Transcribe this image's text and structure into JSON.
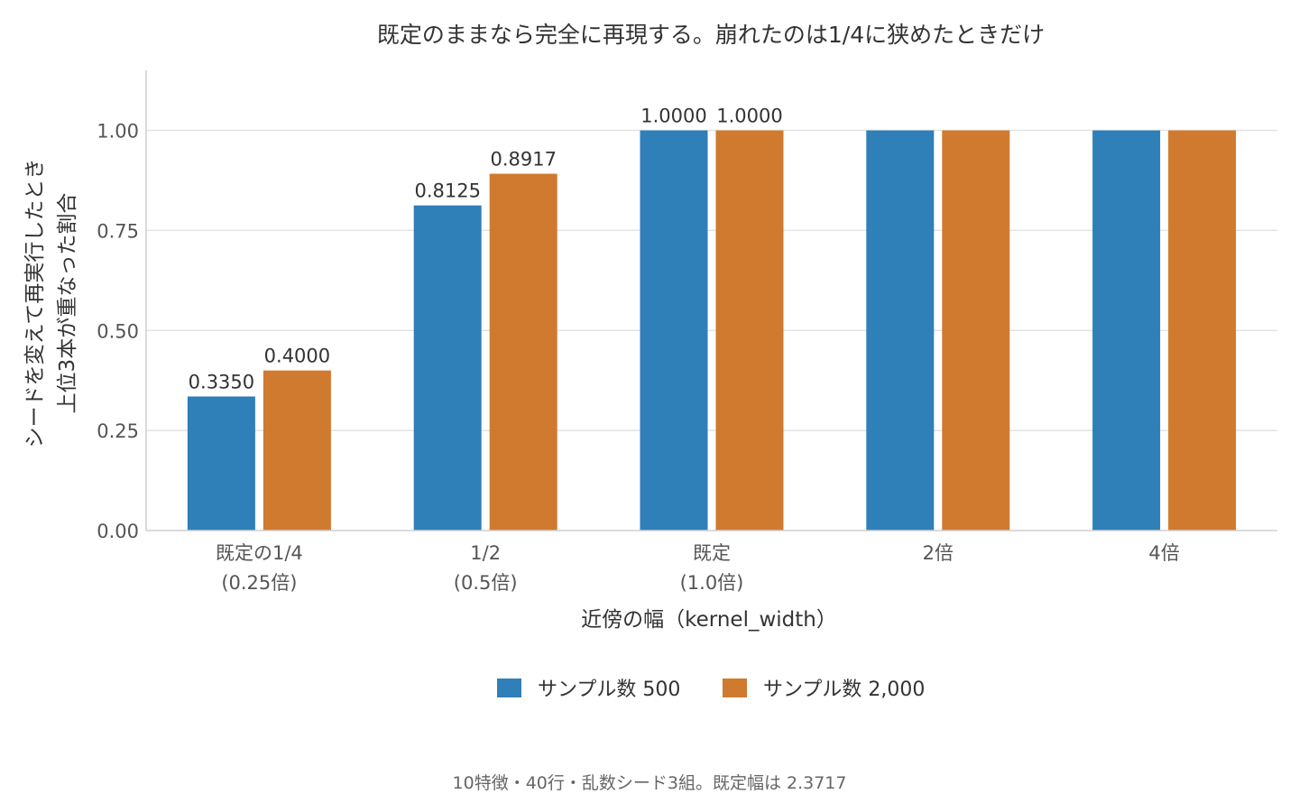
{
  "chart_data": {
    "type": "bar",
    "title": "既定のままなら完全に再現する。崩れたのは1/4に狭めたときだけ",
    "xlabel": "近傍の幅（kernel_width）",
    "ylabel_lines": [
      "シードを変えて再実行したとき",
      "上位3本が重なった割合"
    ],
    "categories": [
      [
        "既定の1/4",
        "(0.25倍)"
      ],
      [
        "1/2",
        "(0.5倍)"
      ],
      [
        "既定",
        "(1.0倍)"
      ],
      [
        "2倍"
      ],
      [
        "4倍"
      ]
    ],
    "series": [
      {
        "name": "サンプル数 500",
        "color": "#2f7fb8",
        "values": [
          0.335,
          0.8125,
          1.0,
          1.0,
          1.0
        ],
        "labels": [
          "0.3350",
          "0.8125",
          "1.0000",
          "",
          ""
        ]
      },
      {
        "name": "サンプル数 2,000",
        "color": "#d07a2f",
        "values": [
          0.4,
          0.8917,
          1.0,
          1.0,
          1.0
        ],
        "labels": [
          "0.4000",
          "0.8917",
          "1.0000",
          "",
          ""
        ]
      }
    ],
    "yticks": [
      0,
      0.25,
      0.5,
      0.75,
      1.0
    ],
    "ytick_labels": [
      "0.00",
      "0.25",
      "0.50",
      "0.75",
      "1.00"
    ],
    "ylim": [
      0,
      1.15
    ],
    "grid": true,
    "legend_position": "bottom-center",
    "footnote": "10特徴・40行・乱数シード3組。既定幅は 2.3717"
  }
}
